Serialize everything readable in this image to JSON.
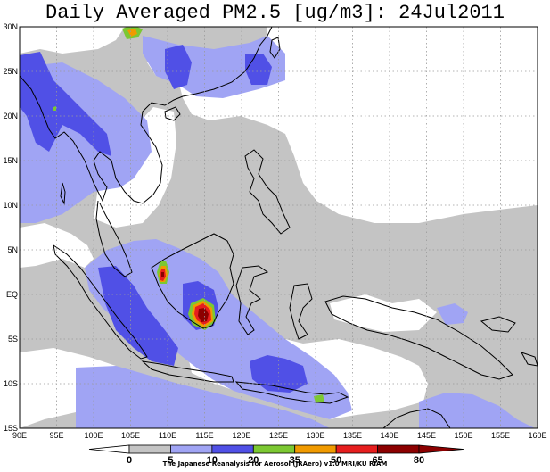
{
  "title": "Daily Averaged PM2.5 [ug/m3]: 24Jul2011",
  "credit": "The Japanese Reanalysis for Aerosol (JRAero) v1.0 MRI/KU RIAM",
  "map": {
    "lon_range": [
      90,
      160
    ],
    "lat_range": [
      -15,
      30
    ],
    "lon_ticks": [
      {
        "value": 90,
        "label": "90E"
      },
      {
        "value": 95,
        "label": "95E"
      },
      {
        "value": 100,
        "label": "100E"
      },
      {
        "value": 105,
        "label": "105E"
      },
      {
        "value": 110,
        "label": "110E"
      },
      {
        "value": 115,
        "label": "115E"
      },
      {
        "value": 120,
        "label": "120E"
      },
      {
        "value": 125,
        "label": "125E"
      },
      {
        "value": 130,
        "label": "130E"
      },
      {
        "value": 135,
        "label": "135E"
      },
      {
        "value": 140,
        "label": "140E"
      },
      {
        "value": 145,
        "label": "145E"
      },
      {
        "value": 150,
        "label": "150E"
      },
      {
        "value": 155,
        "label": "155E"
      },
      {
        "value": 160,
        "label": "160E"
      }
    ],
    "lat_ticks": [
      {
        "value": 30,
        "label": "30N"
      },
      {
        "value": 25,
        "label": "25N"
      },
      {
        "value": 20,
        "label": "20N"
      },
      {
        "value": 15,
        "label": "15N"
      },
      {
        "value": 10,
        "label": "10N"
      },
      {
        "value": 5,
        "label": "5N"
      },
      {
        "value": 0,
        "label": "EQ"
      },
      {
        "value": -5,
        "label": "5S"
      },
      {
        "value": -10,
        "label": "10S"
      },
      {
        "value": -15,
        "label": "15S"
      }
    ],
    "colors": {
      "gray": "#c4c4c4",
      "light_blue": "#a0a4f4",
      "blue": "#5050e6",
      "green": "#7cc832",
      "orange": "#f09a00",
      "red": "#e61e1e",
      "dark_red": "#8c0000",
      "coast": "#000000",
      "grid": "#9a9a9a"
    }
  },
  "legend": {
    "labels": [
      "0",
      "5",
      "10",
      "20",
      "35",
      "50",
      "65",
      "80"
    ],
    "colors": [
      "#ffffff",
      "#c4c4c4",
      "#a0a4f4",
      "#5050e6",
      "#7cc832",
      "#f09a00",
      "#e61e1e",
      "#8c0000"
    ]
  }
}
